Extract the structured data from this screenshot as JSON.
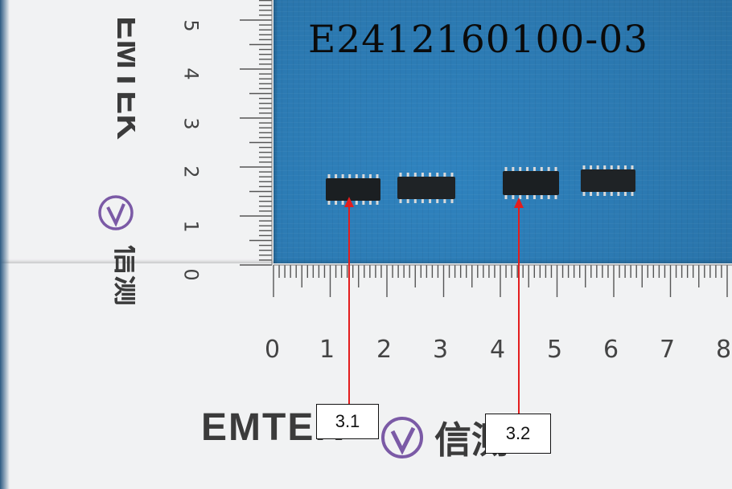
{
  "photo": {
    "sample_id": "E2412160100-03",
    "callouts": [
      {
        "label": "3.1"
      },
      {
        "label": "3.2"
      }
    ],
    "ruler_horizontal_numbers": [
      "0",
      "1",
      "2",
      "3",
      "4",
      "5",
      "6",
      "7",
      "8"
    ],
    "ruler_vertical_numbers": [
      "5",
      "4",
      "3",
      "2",
      "1",
      "0"
    ],
    "brand_text": "EMTEK",
    "brand_chinese": "信测",
    "colors": {
      "background_mat": "#2a76ad",
      "ruler": "#f1f2f3",
      "arrow": "#e31d1d",
      "chip": "#1b1f22"
    }
  }
}
